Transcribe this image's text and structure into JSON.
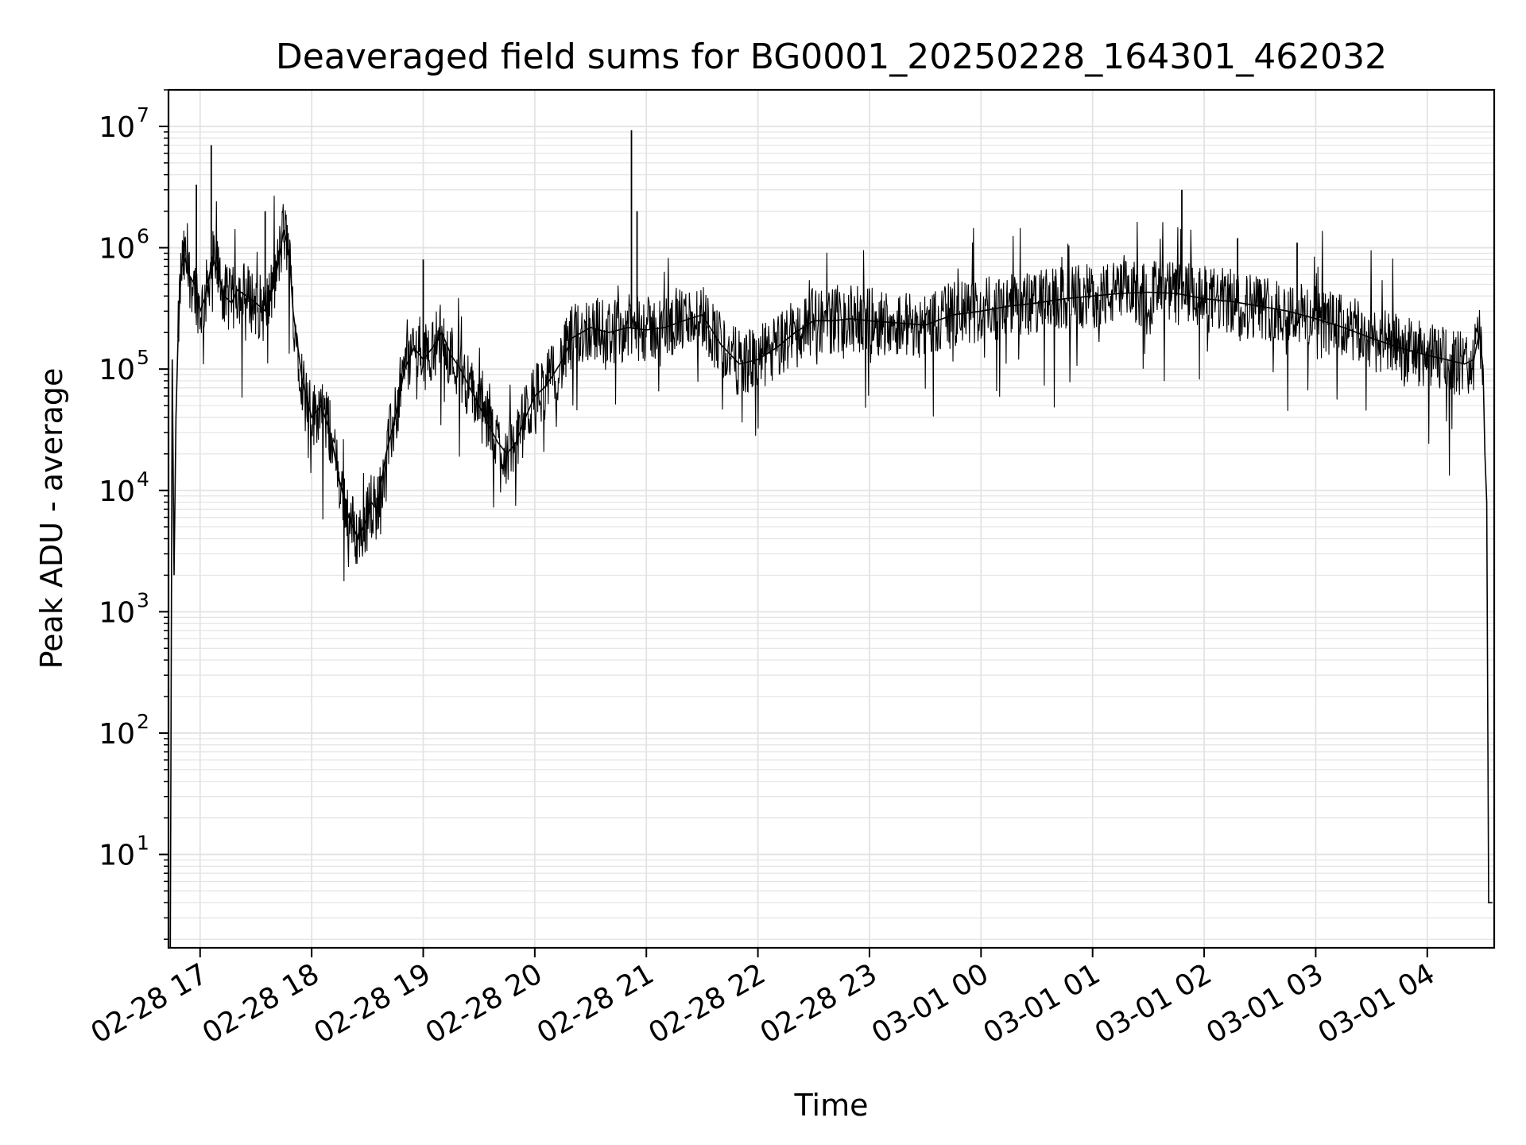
{
  "chart_data": {
    "type": "line",
    "title": "Deaveraged field sums for BG0001_20250228_164301_462032",
    "xlabel": "Time",
    "ylabel": "Peak ADU - average",
    "y_scale": "log",
    "grid": true,
    "grid_minor": true,
    "legend": "none",
    "line_color": "#000000",
    "grid_color": "#e3e3e3",
    "xlim": [
      "2025-02-28 16:43",
      "2025-03-01 04:36"
    ],
    "ylim": [
      1.7,
      20000000
    ],
    "x_ticks": [
      {
        "value": "2025-02-28 17:00",
        "label": "02-28 17"
      },
      {
        "value": "2025-02-28 18:00",
        "label": "02-28 18"
      },
      {
        "value": "2025-02-28 19:00",
        "label": "02-28 19"
      },
      {
        "value": "2025-02-28 20:00",
        "label": "02-28 20"
      },
      {
        "value": "2025-02-28 21:00",
        "label": "02-28 21"
      },
      {
        "value": "2025-02-28 22:00",
        "label": "02-28 22"
      },
      {
        "value": "2025-02-28 23:00",
        "label": "02-28 23"
      },
      {
        "value": "2025-03-01 00:00",
        "label": "03-01 00"
      },
      {
        "value": "2025-03-01 01:00",
        "label": "03-01 01"
      },
      {
        "value": "2025-03-01 02:00",
        "label": "03-01 02"
      },
      {
        "value": "2025-03-01 03:00",
        "label": "03-01 03"
      },
      {
        "value": "2025-03-01 04:00",
        "label": "03-01 04"
      }
    ],
    "y_ticks": [
      {
        "value": 10,
        "base": "10",
        "exp": "1"
      },
      {
        "value": 100,
        "base": "10",
        "exp": "2"
      },
      {
        "value": 1000,
        "base": "10",
        "exp": "3"
      },
      {
        "value": 10000,
        "base": "10",
        "exp": "4"
      },
      {
        "value": 100000,
        "base": "10",
        "exp": "5"
      },
      {
        "value": 1000000,
        "base": "10",
        "exp": "6"
      },
      {
        "value": 10000000,
        "base": "10",
        "exp": "7"
      }
    ],
    "series": [
      {
        "x": [
          "2025-02-28 16:44",
          "2025-02-28 16:45",
          "2025-02-28 16:46",
          "2025-02-28 16:47",
          "2025-02-28 16:48",
          "2025-02-28 16:49",
          "2025-02-28 16:50",
          "2025-02-28 16:52",
          "2025-02-28 16:54",
          "2025-02-28 16:57",
          "2025-02-28 17:00",
          "2025-02-28 17:03",
          "2025-02-28 17:05",
          "2025-02-28 17:07",
          "2025-02-28 17:10",
          "2025-02-28 17:13",
          "2025-02-28 17:17",
          "2025-02-28 17:20",
          "2025-02-28 17:25",
          "2025-02-28 17:30",
          "2025-02-28 17:35",
          "2025-02-28 17:40",
          "2025-02-28 17:45",
          "2025-02-28 17:48",
          "2025-02-28 17:50",
          "2025-02-28 17:55",
          "2025-02-28 18:00",
          "2025-02-28 18:05",
          "2025-02-28 18:10",
          "2025-02-28 18:15",
          "2025-02-28 18:20",
          "2025-02-28 18:25",
          "2025-02-28 18:30",
          "2025-02-28 18:32",
          "2025-02-28 18:35",
          "2025-02-28 18:40",
          "2025-02-28 18:45",
          "2025-02-28 18:50",
          "2025-02-28 18:55",
          "2025-02-28 19:00",
          "2025-02-28 19:05",
          "2025-02-28 19:10",
          "2025-02-28 19:15",
          "2025-02-28 19:20",
          "2025-02-28 19:25",
          "2025-02-28 19:30",
          "2025-02-28 19:35",
          "2025-02-28 19:40",
          "2025-02-28 19:45",
          "2025-02-28 19:50",
          "2025-02-28 19:55",
          "2025-02-28 20:00",
          "2025-02-28 20:05",
          "2025-02-28 20:10",
          "2025-02-28 20:15",
          "2025-02-28 20:20",
          "2025-02-28 20:30",
          "2025-02-28 20:40",
          "2025-02-28 20:50",
          "2025-02-28 21:00",
          "2025-02-28 21:10",
          "2025-02-28 21:20",
          "2025-02-28 21:30",
          "2025-02-28 21:40",
          "2025-02-28 21:50",
          "2025-02-28 22:00",
          "2025-02-28 22:10",
          "2025-02-28 22:20",
          "2025-02-28 22:30",
          "2025-02-28 22:40",
          "2025-02-28 22:50",
          "2025-02-28 23:00",
          "2025-02-28 23:15",
          "2025-02-28 23:30",
          "2025-02-28 23:45",
          "2025-03-01 00:00",
          "2025-03-01 00:15",
          "2025-03-01 00:30",
          "2025-03-01 00:45",
          "2025-03-01 01:00",
          "2025-03-01 01:15",
          "2025-03-01 01:30",
          "2025-03-01 01:45",
          "2025-03-01 02:00",
          "2025-03-01 02:15",
          "2025-03-01 02:30",
          "2025-03-01 02:45",
          "2025-03-01 03:00",
          "2025-03-01 03:15",
          "2025-03-01 03:30",
          "2025-03-01 03:45",
          "2025-03-01 04:00",
          "2025-03-01 04:10",
          "2025-03-01 04:20",
          "2025-03-01 04:25",
          "2025-03-01 04:28",
          "2025-03-01 04:30",
          "2025-03-01 04:31",
          "2025-03-01 04:32",
          "2025-03-01 04:33",
          "2025-03-01 04:35"
        ],
        "y": [
          1.7,
          120000,
          2000,
          40000,
          150000,
          400000,
          700000,
          800000,
          600000,
          500000,
          300000,
          400000,
          600000,
          800000,
          600000,
          400000,
          350000,
          450000,
          400000,
          350000,
          300000,
          500000,
          1400000,
          900000,
          300000,
          80000,
          40000,
          50000,
          30000,
          12000,
          6000,
          4000,
          6000,
          8000,
          7000,
          20000,
          40000,
          100000,
          150000,
          120000,
          150000,
          200000,
          130000,
          100000,
          70000,
          50000,
          35000,
          25000,
          20000,
          25000,
          40000,
          60000,
          70000,
          90000,
          120000,
          180000,
          220000,
          200000,
          220000,
          210000,
          220000,
          250000,
          280000,
          160000,
          110000,
          120000,
          150000,
          200000,
          250000,
          250000,
          260000,
          250000,
          240000,
          230000,
          280000,
          300000,
          330000,
          350000,
          380000,
          400000,
          420000,
          430000,
          420000,
          380000,
          360000,
          330000,
          300000,
          260000,
          220000,
          180000,
          150000,
          130000,
          120000,
          110000,
          120000,
          200000,
          100000,
          20000,
          8000,
          4,
          4
        ]
      }
    ],
    "spikes": [
      {
        "x": "2025-02-28 16:58",
        "y": 3300000
      },
      {
        "x": "2025-02-28 17:06",
        "y": 7000000
      },
      {
        "x": "2025-02-28 17:35",
        "y": 2000000
      },
      {
        "x": "2025-02-28 19:00",
        "y": 800000
      },
      {
        "x": "2025-02-28 20:52",
        "y": 9300000
      },
      {
        "x": "2025-02-28 20:55",
        "y": 2000000
      },
      {
        "x": "2025-03-01 01:48",
        "y": 3000000
      },
      {
        "x": "2025-03-01 02:18",
        "y": 1200000
      },
      {
        "x": "2025-03-01 02:50",
        "y": 1100000
      }
    ]
  }
}
